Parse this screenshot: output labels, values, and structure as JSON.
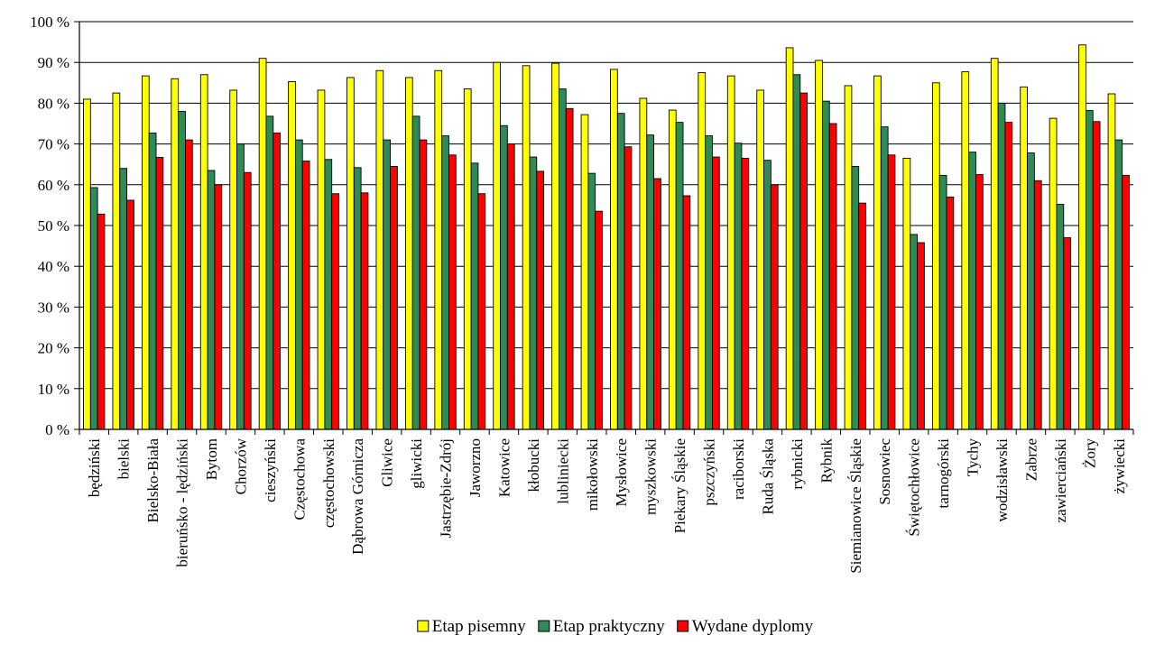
{
  "chart_data": {
    "type": "bar",
    "ylim": [
      0,
      100
    ],
    "y_ticks": [
      {
        "value": 0,
        "label": "0 %"
      },
      {
        "value": 10,
        "label": "10 %"
      },
      {
        "value": 20,
        "label": "20 %"
      },
      {
        "value": 30,
        "label": "30 %"
      },
      {
        "value": 40,
        "label": "40 %"
      },
      {
        "value": 50,
        "label": "50 %"
      },
      {
        "value": 60,
        "label": "60 %"
      },
      {
        "value": 70,
        "label": "70 %"
      },
      {
        "value": 80,
        "label": "80 %"
      },
      {
        "value": 90,
        "label": "90 %"
      },
      {
        "value": 100,
        "label": "100 %"
      }
    ],
    "grid": true,
    "legend_position": "bottom",
    "categories": [
      "będziński",
      "bielski",
      "Bielsko-Biała",
      "bieruńsko - lędziński",
      "Bytom",
      "Chorzów",
      "cieszyński",
      "Częstochowa",
      "częstochowski",
      "Dąbrowa Górnicza",
      "Gliwice",
      "gliwicki",
      "Jastrzębie-Zdrój",
      "Jaworzno",
      "Katowice",
      "kłobucki",
      "lubliniecki",
      "mikołowski",
      "Mysłowice",
      "myszkowski",
      "Piekary Śląskie",
      "pszczyński",
      "raciborski",
      "Ruda Śląska",
      "rybnicki",
      "Rybnik",
      "Siemianowice Śląskie",
      "Sosnowiec",
      "Świętochłowice",
      "tarnogórski",
      "Tychy",
      "wodzisławski",
      "Zabrze",
      "zawierciański",
      "Żory",
      "żywiecki"
    ],
    "series": [
      {
        "name": "Etap pisemny",
        "color": "#ffff00",
        "values": [
          81,
          82.5,
          86.7,
          86,
          87,
          83.2,
          91,
          85.3,
          83.2,
          86.3,
          88,
          86.3,
          88,
          83.5,
          90,
          89.2,
          89.8,
          77.2,
          88.3,
          81.2,
          78.3,
          87.5,
          86.7,
          83.2,
          93.6,
          90.5,
          84.3,
          86.7,
          66.5,
          85,
          87.7,
          91,
          84,
          76.3,
          94.3,
          82.3
        ]
      },
      {
        "name": "Etap praktyczny",
        "color": "#2e8b57",
        "values": [
          59.3,
          64,
          72.7,
          78,
          63.5,
          70,
          76.8,
          71,
          66.2,
          64.2,
          71,
          76.8,
          72,
          65.3,
          74.5,
          66.8,
          83.5,
          62.8,
          77.5,
          72.2,
          75.3,
          72,
          70.2,
          66,
          87,
          80.5,
          64.5,
          74.2,
          47.8,
          62.3,
          68,
          80,
          67.8,
          55.2,
          78.2,
          71
        ]
      },
      {
        "name": "Wydane dyplomy",
        "color": "#ff0000",
        "values": [
          52.8,
          56.2,
          66.7,
          71,
          60,
          63,
          72.7,
          65.8,
          57.8,
          58,
          64.5,
          71,
          67.3,
          57.8,
          70,
          63.3,
          78.7,
          53.5,
          69.3,
          61.5,
          57.3,
          66.8,
          66.5,
          60,
          82.5,
          75,
          55.5,
          67.3,
          45.8,
          57,
          62.5,
          75.3,
          61,
          47,
          75.5,
          62.3
        ]
      }
    ]
  }
}
